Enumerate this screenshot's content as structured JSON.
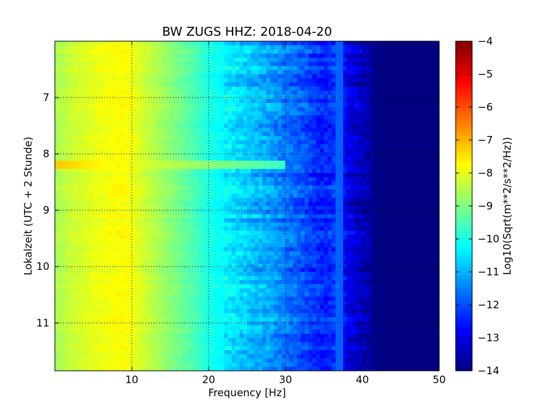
{
  "chart_data": {
    "type": "heatmap",
    "title": "BW ZUGS HHZ: 2018-04-20",
    "xlabel": "Frequency [Hz]",
    "ylabel": "Lokalzeit (UTC + 2 Stunde)",
    "colorbar_label": "Log10(Sqrt(m**2/s**2/Hz))",
    "colormap": "jet",
    "xlim": [
      0,
      50
    ],
    "ylim": [
      6.0,
      11.85
    ],
    "y_inverted": true,
    "x_ticks": [
      10,
      20,
      30,
      40,
      50
    ],
    "x_tick_labels": [
      "10",
      "20",
      "30",
      "40",
      "50"
    ],
    "y_ticks": [
      7,
      8,
      9,
      10,
      11
    ],
    "y_tick_labels": [
      "7",
      "8",
      "9",
      "10",
      "11"
    ],
    "clim": [
      -14,
      -4
    ],
    "colorbar_ticks": [
      -4,
      -5,
      -6,
      -7,
      -8,
      -9,
      -10,
      -11,
      -12,
      -13,
      -14
    ],
    "colorbar_tick_labels": [
      "−4",
      "−5",
      "−6",
      "−7",
      "−8",
      "−9",
      "−10",
      "−11",
      "−12",
      "−13",
      "−14"
    ],
    "grid": true,
    "grid_style": "dotted",
    "profile": {
      "frequency_hz": [
        0,
        2,
        5,
        8,
        9,
        10,
        12,
        15,
        18,
        20,
        22,
        25,
        28,
        30,
        33,
        35,
        37,
        38,
        40,
        41,
        42,
        50
      ],
      "level": [
        -8.6,
        -8.3,
        -8.0,
        -7.8,
        -7.75,
        -7.9,
        -8.3,
        -8.9,
        -9.5,
        -10.0,
        -10.3,
        -10.8,
        -11.2,
        -11.6,
        -12.1,
        -12.5,
        -12.2,
        -13.0,
        -13.4,
        -13.7,
        -14.0,
        -14.0
      ]
    },
    "features": [
      {
        "type": "horizontal-band",
        "time": 8.2,
        "freq_range": [
          0,
          30
        ],
        "peak_level": -7.2
      },
      {
        "type": "vertical-line",
        "frequency_hz": 37.0,
        "level": -11.8
      }
    ]
  }
}
